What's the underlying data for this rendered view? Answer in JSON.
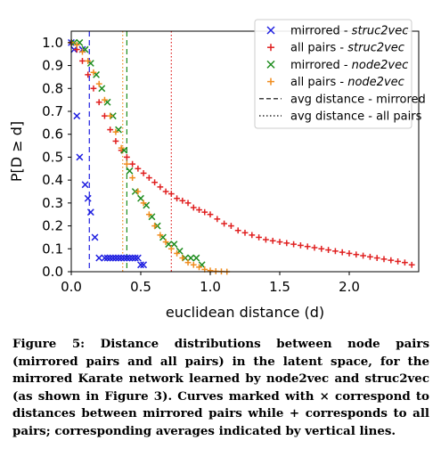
{
  "chart_data": {
    "type": "scatter",
    "xlabel": "euclidean distance (d)",
    "ylabel": "P[D ≥ d]",
    "xlim": [
      0,
      2.5
    ],
    "ylim": [
      0,
      1.05
    ],
    "xticks": [
      0.0,
      0.5,
      1.0,
      1.5,
      2.0
    ],
    "yticks": [
      0.0,
      0.1,
      0.2,
      0.3,
      0.4,
      0.5,
      0.6,
      0.7,
      0.8,
      0.9,
      1.0
    ],
    "grid": false,
    "legend_position": "top-right",
    "series": [
      {
        "name": "mirrored - struc2vec",
        "label_parts": [
          "mirrored - ",
          "struc2vec"
        ],
        "marker": "x",
        "color": "#1f1fe0",
        "x": [
          0.0,
          0.02,
          0.04,
          0.06,
          0.08,
          0.1,
          0.12,
          0.14,
          0.17,
          0.2,
          0.24,
          0.26,
          0.28,
          0.3,
          0.32,
          0.34,
          0.36,
          0.38,
          0.4,
          0.42,
          0.44,
          0.46,
          0.48,
          0.5,
          0.52
        ],
        "y": [
          1.0,
          0.97,
          0.68,
          0.5,
          0.97,
          0.38,
          0.32,
          0.26,
          0.15,
          0.06,
          0.06,
          0.06,
          0.06,
          0.06,
          0.06,
          0.06,
          0.06,
          0.06,
          0.06,
          0.06,
          0.06,
          0.06,
          0.06,
          0.03,
          0.03
        ]
      },
      {
        "name": "all pairs - struc2vec",
        "label_parts": [
          "all pairs - ",
          "struc2vec"
        ],
        "marker": "+",
        "color": "#e02020",
        "x": [
          0.0,
          0.04,
          0.08,
          0.12,
          0.16,
          0.2,
          0.24,
          0.28,
          0.32,
          0.36,
          0.4,
          0.44,
          0.48,
          0.52,
          0.56,
          0.6,
          0.64,
          0.68,
          0.72,
          0.76,
          0.8,
          0.84,
          0.88,
          0.92,
          0.96,
          1.0,
          1.05,
          1.1,
          1.15,
          1.2,
          1.25,
          1.3,
          1.35,
          1.4,
          1.45,
          1.5,
          1.55,
          1.6,
          1.65,
          1.7,
          1.75,
          1.8,
          1.85,
          1.9,
          1.95,
          2.0,
          2.05,
          2.1,
          2.15,
          2.2,
          2.25,
          2.3,
          2.35,
          2.4,
          2.45
        ],
        "y": [
          1.0,
          0.97,
          0.92,
          0.86,
          0.8,
          0.74,
          0.68,
          0.62,
          0.57,
          0.53,
          0.5,
          0.47,
          0.45,
          0.43,
          0.41,
          0.39,
          0.37,
          0.35,
          0.34,
          0.32,
          0.31,
          0.3,
          0.28,
          0.27,
          0.26,
          0.25,
          0.23,
          0.21,
          0.2,
          0.18,
          0.17,
          0.16,
          0.15,
          0.14,
          0.135,
          0.13,
          0.125,
          0.12,
          0.115,
          0.11,
          0.105,
          0.1,
          0.095,
          0.09,
          0.085,
          0.08,
          0.075,
          0.07,
          0.065,
          0.06,
          0.055,
          0.05,
          0.045,
          0.04,
          0.03
        ]
      },
      {
        "name": "mirrored - node2vec",
        "label_parts": [
          "mirrored - ",
          "node2vec"
        ],
        "marker": "x",
        "color": "#1e8c1e",
        "x": [
          0.02,
          0.06,
          0.1,
          0.14,
          0.18,
          0.22,
          0.26,
          0.3,
          0.34,
          0.38,
          0.42,
          0.46,
          0.5,
          0.54,
          0.58,
          0.62,
          0.66,
          0.7,
          0.74,
          0.78,
          0.82,
          0.86,
          0.9,
          0.94
        ],
        "y": [
          1.0,
          1.0,
          0.97,
          0.91,
          0.86,
          0.8,
          0.74,
          0.68,
          0.62,
          0.53,
          0.44,
          0.35,
          0.32,
          0.29,
          0.24,
          0.2,
          0.15,
          0.12,
          0.12,
          0.09,
          0.06,
          0.06,
          0.06,
          0.03
        ]
      },
      {
        "name": "all pairs - node2vec",
        "label_parts": [
          "all pairs - ",
          "node2vec"
        ],
        "marker": "+",
        "color": "#f08c1e",
        "x": [
          0.0,
          0.04,
          0.08,
          0.12,
          0.16,
          0.2,
          0.24,
          0.28,
          0.32,
          0.36,
          0.4,
          0.44,
          0.48,
          0.52,
          0.56,
          0.6,
          0.64,
          0.68,
          0.72,
          0.76,
          0.8,
          0.84,
          0.88,
          0.92,
          0.96,
          1.0,
          1.04,
          1.08,
          1.12
        ],
        "y": [
          1.0,
          0.99,
          0.96,
          0.92,
          0.87,
          0.82,
          0.75,
          0.68,
          0.61,
          0.54,
          0.47,
          0.41,
          0.35,
          0.3,
          0.25,
          0.2,
          0.16,
          0.13,
          0.1,
          0.08,
          0.06,
          0.04,
          0.03,
          0.02,
          0.01,
          0.005,
          0.002,
          0.001,
          0.0
        ]
      }
    ],
    "vlines": [
      {
        "name": "avg distance - mirrored",
        "style": "dashed",
        "x": 0.13,
        "color": "#1f1fe0"
      },
      {
        "name": "avg distance - mirrored",
        "style": "dashed",
        "x": 0.4,
        "color": "#1e8c1e"
      },
      {
        "name": "avg distance - all pairs",
        "style": "dotted",
        "x": 0.37,
        "color": "#f08c1e"
      },
      {
        "name": "avg distance - all pairs",
        "style": "dotted",
        "x": 0.72,
        "color": "#e02020"
      }
    ],
    "legend": [
      {
        "marker": "x",
        "color": "#1f1fe0",
        "parts": [
          "mirrored - ",
          "struc2vec"
        ]
      },
      {
        "marker": "+",
        "color": "#e02020",
        "parts": [
          "all pairs - ",
          "struc2vec"
        ]
      },
      {
        "marker": "x",
        "color": "#1e8c1e",
        "parts": [
          "mirrored - ",
          "node2vec"
        ]
      },
      {
        "marker": "+",
        "color": "#f08c1e",
        "parts": [
          "all pairs - ",
          "node2vec"
        ]
      },
      {
        "marker": "dashed",
        "color": "#000000",
        "parts": [
          "avg distance - mirrored",
          ""
        ]
      },
      {
        "marker": "dotted",
        "color": "#000000",
        "parts": [
          "avg distance - all pairs",
          ""
        ]
      }
    ]
  },
  "caption": {
    "text": "Figure 5: Distance distributions between node pairs (mirrored pairs and all pairs) in the latent space, for the mirrored Karate network learned by node2vec and struc2vec (as shown in Figure 3). Curves marked with × correspond to distances between mirrored pairs while + corresponds to all pairs; corresponding averages indicated by vertical lines."
  }
}
